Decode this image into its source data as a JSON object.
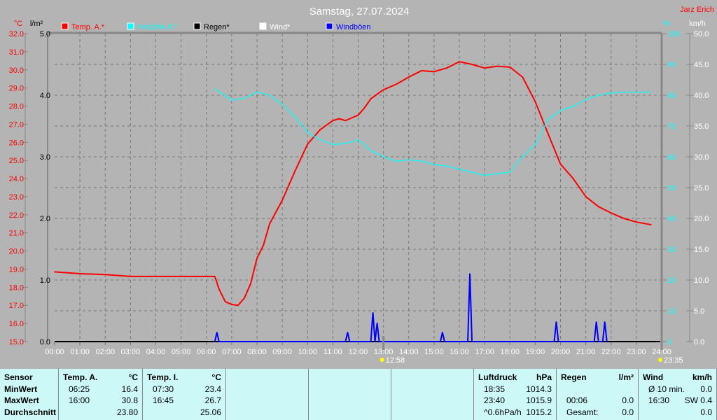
{
  "header": {
    "title": "Samstag, 27.07.2024",
    "author": "Jarz Erich"
  },
  "chart_data": {
    "type": "line",
    "title": "Samstag, 27.07.2024",
    "legend": [
      {
        "name": "Temp. A.*",
        "color": "#ff0000"
      },
      {
        "name": "Feuchte A.*",
        "color": "#00ffff"
      },
      {
        "name": "Regen*",
        "color": "#000000"
      },
      {
        "name": "Wind*",
        "color": "#ffffff"
      },
      {
        "name": "Windböen",
        "color": "#0000ff"
      }
    ],
    "legend_placement": "top",
    "grid": true,
    "x_ticks": [
      "00:00",
      "01:00",
      "02:00",
      "03:00",
      "04:00",
      "05:00",
      "06:00",
      "07:00",
      "08:00",
      "09:00",
      "10:00",
      "11:00",
      "12:00",
      "13:00",
      "14:00",
      "15:00",
      "16:00",
      "17:00",
      "18:00",
      "19:00",
      "20:00",
      "21:00",
      "22:00",
      "23:00",
      "24:00"
    ],
    "axes": {
      "temp": {
        "unit": "°C",
        "range": [
          15,
          32
        ],
        "color": "#ff0000"
      },
      "rain": {
        "unit": "l/m²",
        "range": [
          0,
          5
        ],
        "color": "#000000"
      },
      "humidity": {
        "unit": "%",
        "range": [
          0,
          100
        ],
        "color": "#00ffff"
      },
      "wind": {
        "unit": "km/h",
        "range": [
          0,
          50
        ],
        "color": "#ffffff"
      }
    },
    "series": [
      {
        "name": "Temp. A.*",
        "axis": "temp",
        "color": "#ff0000",
        "x": [
          "00:00",
          "00:30",
          "01:00",
          "02:00",
          "03:00",
          "04:00",
          "05:00",
          "06:20",
          "06:30",
          "06:45",
          "07:00",
          "07:15",
          "07:30",
          "07:45",
          "08:00",
          "08:15",
          "08:30",
          "09:00",
          "09:30",
          "10:00",
          "10:30",
          "11:00",
          "11:15",
          "11:30",
          "12:00",
          "12:15",
          "12:30",
          "13:00",
          "13:30",
          "14:00",
          "14:30",
          "15:00",
          "15:30",
          "16:00",
          "16:30",
          "17:00",
          "17:30",
          "18:00",
          "18:30",
          "19:00",
          "19:30",
          "20:00",
          "20:30",
          "21:00",
          "21:30",
          "22:00",
          "22:30",
          "23:00",
          "23:35"
        ],
        "values": [
          18.85,
          18.8,
          18.75,
          18.7,
          18.6,
          18.6,
          18.6,
          18.6,
          17.9,
          17.2,
          17.05,
          17.0,
          17.4,
          18.2,
          19.6,
          20.3,
          21.5,
          22.8,
          24.4,
          25.9,
          26.7,
          27.2,
          27.3,
          27.2,
          27.5,
          27.9,
          28.4,
          28.9,
          29.2,
          29.6,
          29.95,
          29.9,
          30.1,
          30.45,
          30.3,
          30.1,
          30.2,
          30.15,
          29.6,
          28.25,
          26.5,
          24.8,
          24.0,
          23.0,
          22.45,
          22.1,
          21.8,
          21.6,
          21.45
        ]
      },
      {
        "name": "Feuchte A.*",
        "axis": "humidity",
        "color": "#00ffff",
        "x": [
          "06:20",
          "07:00",
          "07:30",
          "08:00",
          "08:30",
          "09:00",
          "09:30",
          "10:00",
          "10:30",
          "11:00",
          "11:30",
          "12:00",
          "12:30",
          "13:00",
          "13:30",
          "14:00",
          "14:30",
          "15:00",
          "15:30",
          "16:00",
          "16:30",
          "17:00",
          "17:30",
          "18:00",
          "18:30",
          "19:00",
          "19:30",
          "20:00",
          "20:30",
          "21:00",
          "21:30",
          "22:00",
          "22:30",
          "23:35"
        ],
        "values": [
          82,
          78.4,
          79,
          81,
          80,
          77,
          73,
          68,
          65.5,
          64,
          64.3,
          65.5,
          62,
          60,
          58.6,
          59,
          58.6,
          57.5,
          57,
          56,
          55,
          54,
          54.5,
          55,
          60,
          64,
          72,
          75,
          76.4,
          78.6,
          80,
          80.7,
          81,
          81
        ]
      },
      {
        "name": "Windböen",
        "axis": "wind",
        "color": "#0000ff",
        "x": [
          "06:25",
          "11:35",
          "12:35",
          "12:45",
          "15:20",
          "16:25",
          "19:50",
          "21:25",
          "21:45"
        ],
        "values": [
          1.5,
          1.5,
          4.7,
          3.0,
          1.5,
          11.0,
          3.2,
          3.2,
          3.2
        ]
      }
    ],
    "markers": [
      {
        "x": "13:00",
        "label": "12:58"
      },
      {
        "x": "24:00",
        "label": "23:35"
      }
    ]
  },
  "table": [
    {
      "rows": [
        [
          "Sensor",
          ""
        ],
        [
          "MinWert",
          ""
        ],
        [
          "MaxWert",
          ""
        ],
        [
          "Durchschnitt",
          ""
        ]
      ]
    },
    {
      "rows": [
        [
          "Temp. A.",
          "°C"
        ],
        [
          "06:25",
          "16.4"
        ],
        [
          "16:00",
          "30.8"
        ],
        [
          "",
          "23.80"
        ]
      ]
    },
    {
      "rows": [
        [
          "Temp. I.",
          "°C"
        ],
        [
          "07:30",
          "23.4"
        ],
        [
          "16:45",
          "26.7"
        ],
        [
          "",
          "25.06"
        ]
      ]
    },
    {
      "rows": []
    },
    {
      "rows": []
    },
    {
      "rows": []
    },
    {
      "rows": [
        [
          "Luftdruck",
          "hPa"
        ],
        [
          "18:35",
          "1014.3"
        ],
        [
          "23:40",
          "1015.9"
        ],
        [
          "^0.6hPa/h",
          "1015.2"
        ]
      ]
    },
    {
      "rows": [
        [
          "Regen",
          "l/m²"
        ],
        [
          "",
          ""
        ],
        [
          "00:06",
          "0.0"
        ],
        [
          "Gesamt:",
          "0.0"
        ]
      ]
    },
    {
      "rows": [
        [
          "Wind",
          "km/h"
        ],
        [
          "Ø 10 min.",
          "0.0"
        ],
        [
          "16:30",
          "SW 0.4"
        ],
        [
          "",
          "0.0"
        ]
      ]
    }
  ]
}
